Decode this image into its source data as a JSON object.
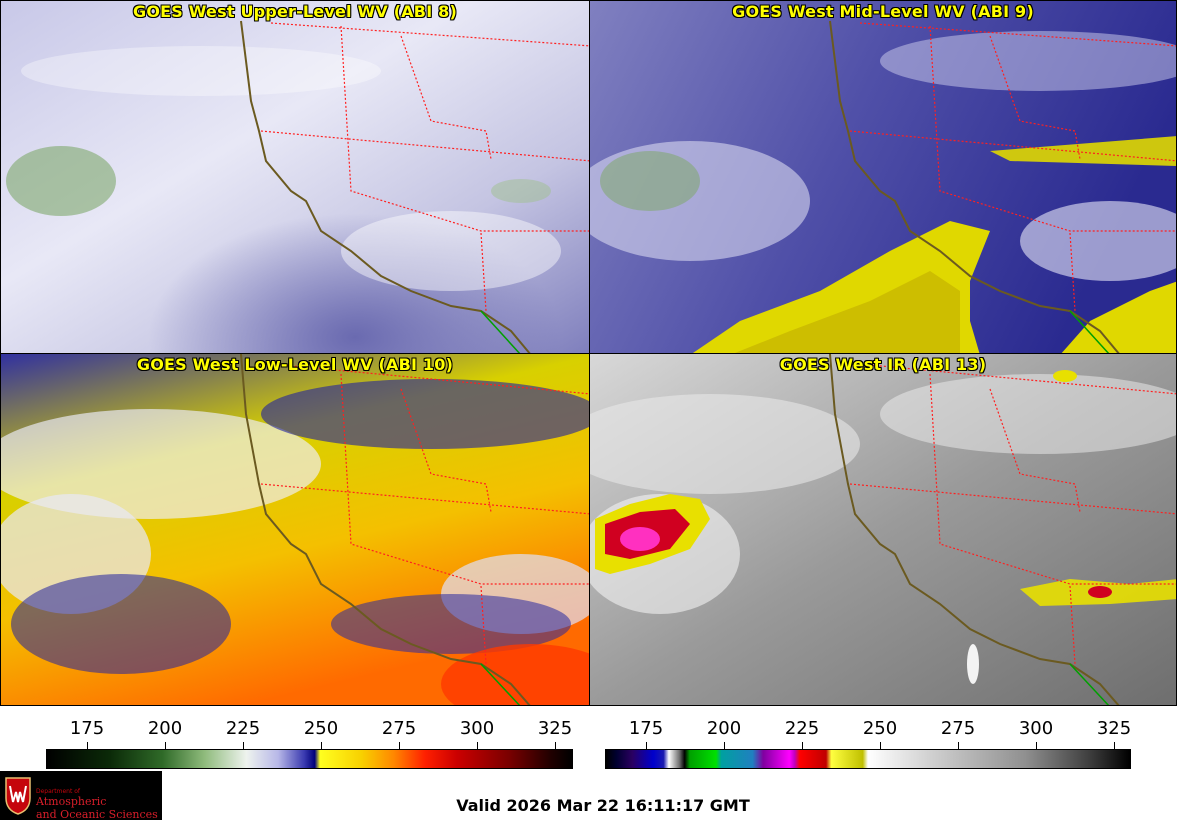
{
  "panels": [
    {
      "title": "GOES West Upper-Level WV (ABI 8)"
    },
    {
      "title": "GOES West Mid-Level WV (ABI 9)"
    },
    {
      "title": "GOES West Low-Level WV (ABI 10)"
    },
    {
      "title": "GOES West IR (ABI 13)"
    }
  ],
  "colorbars": {
    "wv": {
      "ticks": [
        "175",
        "200",
        "225",
        "250",
        "275",
        "300",
        "325"
      ]
    },
    "ir": {
      "ticks": [
        "175",
        "200",
        "225",
        "250",
        "275",
        "300",
        "325"
      ]
    }
  },
  "logo": {
    "small": "Department of",
    "line1": "Atmospheric",
    "line2": "and Oceanic Sciences"
  },
  "valid_time": "Valid 2026 Mar 22 16:11:17 GMT",
  "colors": {
    "title_text": "#ffff00",
    "state_borders": "#ff2020",
    "coastline": "#6b5a20",
    "mexico_border": "#00a000"
  }
}
